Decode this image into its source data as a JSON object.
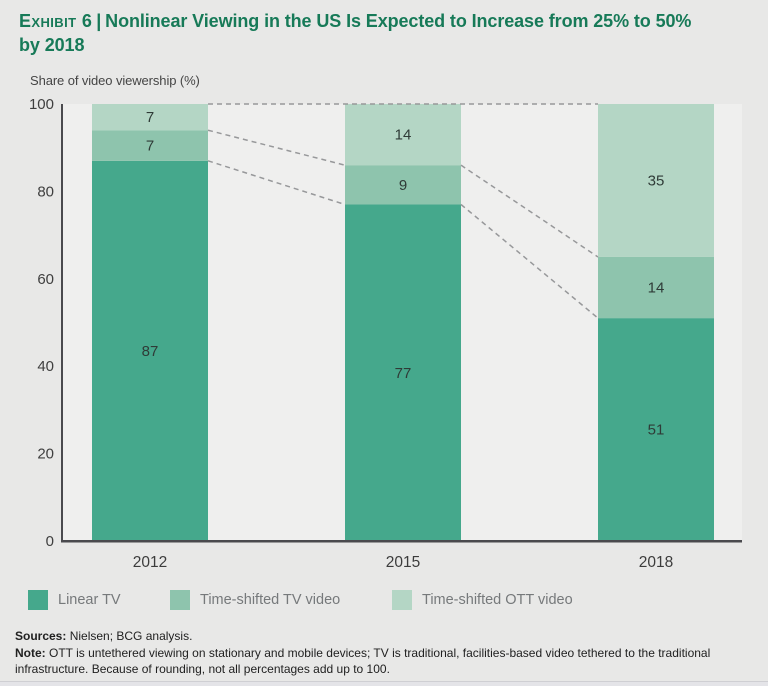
{
  "header": {
    "exhibit_label": "Exhibit 6",
    "divider": "|",
    "title_line1": "Nonlinear Viewing in the US Is Expected to Increase from 25% to 50%",
    "title_line2": "by 2018",
    "accent_color": "#177a58"
  },
  "chart_data": {
    "type": "bar",
    "stacked": true,
    "title": "Exhibit 6 | Nonlinear Viewing in the US Is Expected to Increase from 25% to 50% by 2018",
    "ylabel": "Share of video viewership (%)",
    "xlabel": "",
    "categories": [
      "2012",
      "2015",
      "2018"
    ],
    "series": [
      {
        "name": "Linear TV",
        "color": "#45a88c",
        "values": [
          87,
          77,
          51
        ]
      },
      {
        "name": "Time-shifted TV video",
        "color": "#8ec4ad",
        "values": [
          7,
          9,
          14
        ]
      },
      {
        "name": "Time-shifted OTT video",
        "color": "#b4d6c5",
        "values": [
          7,
          14,
          35
        ]
      }
    ],
    "ylim": [
      0,
      100
    ],
    "yticks": [
      0,
      20,
      40,
      60,
      80,
      100
    ],
    "grid": false,
    "legend_position": "bottom",
    "connectors": {
      "style": "dashed",
      "color": "#97989a",
      "top_line_value": 100,
      "description": "dashed lines link cumulative stack boundaries of adjacent bars"
    },
    "colors": {
      "plot_background": "#efefee",
      "page_background": "#e8e8e7",
      "axis": "#4a4a4e",
      "tick_label": "#3f3f3f",
      "value_label": "#2f3b37",
      "category_label": "#3c3c3c"
    }
  },
  "footer": {
    "sources_label": "Sources:",
    "sources_text": " Nielsen; BCG analysis.",
    "note_label": "Note:",
    "note_text": " OTT is untethered viewing on stationary and mobile devices; TV is traditional, facilities-based video tethered to the traditional infrastructure. Because of rounding, not all percentages add up to 100."
  }
}
